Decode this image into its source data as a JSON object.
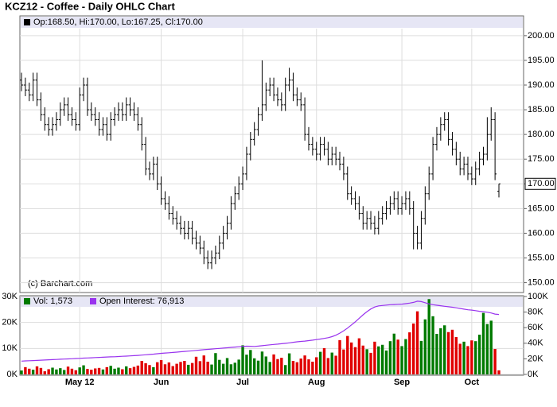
{
  "chart_data": {
    "type": "ohlc",
    "title": "KCZ12 - Coffee - Daily OHLC Chart",
    "info": "Op:168.50, Hi:170.00, Lo:167.25, Cl:170.00",
    "copyright": "(c) Barchart.com",
    "last_close_label": "170.00",
    "categories": [
      null,
      null,
      null,
      null,
      null,
      null,
      null,
      null,
      null,
      null,
      null,
      null,
      null,
      null,
      null,
      "May 12",
      null,
      null,
      null,
      null,
      null,
      null,
      null,
      null,
      null,
      null,
      null,
      null,
      null,
      null,
      null,
      null,
      null,
      null,
      null,
      null,
      "Jun",
      null,
      null,
      null,
      null,
      null,
      null,
      null,
      null,
      null,
      null,
      null,
      null,
      null,
      null,
      null,
      null,
      null,
      null,
      null,
      null,
      "Jul",
      null,
      null,
      null,
      null,
      null,
      null,
      null,
      null,
      null,
      null,
      null,
      null,
      null,
      null,
      null,
      null,
      null,
      null,
      "Aug",
      null,
      null,
      null,
      null,
      null,
      null,
      null,
      null,
      null,
      null,
      null,
      null,
      null,
      null,
      null,
      null,
      null,
      null,
      null,
      null,
      null,
      "Sep",
      null,
      null,
      null,
      null,
      null,
      null,
      null,
      null,
      null,
      null,
      null,
      null,
      null,
      null,
      null,
      null,
      null,
      "Oct",
      null,
      null,
      null,
      null,
      null,
      null
    ],
    "ohlc": [
      [
        191,
        192.5,
        188.75,
        190
      ],
      [
        190,
        191.5,
        187.75,
        189
      ],
      [
        189,
        190.5,
        186.75,
        188
      ],
      [
        188,
        192.5,
        186.75,
        191
      ],
      [
        191,
        192.5,
        185.75,
        187
      ],
      [
        187,
        188.5,
        182.75,
        184
      ],
      [
        184,
        185.5,
        180.75,
        182
      ],
      [
        182,
        183.5,
        179.75,
        181
      ],
      [
        181,
        183.5,
        179.75,
        182
      ],
      [
        182,
        184.5,
        180.75,
        183
      ],
      [
        183,
        186.5,
        181.75,
        185
      ],
      [
        185,
        187.5,
        183.75,
        186
      ],
      [
        186,
        187.5,
        182.75,
        184
      ],
      [
        184,
        185.5,
        181.75,
        183
      ],
      [
        183,
        184.5,
        180.75,
        182
      ],
      [
        182,
        189.5,
        180.75,
        188
      ],
      [
        188,
        191.5,
        186.75,
        190
      ],
      [
        190,
        191.5,
        183.75,
        185
      ],
      [
        185,
        186.5,
        182.75,
        184
      ],
      [
        184,
        185.5,
        181.75,
        183
      ],
      [
        183,
        184.5,
        179.75,
        181
      ],
      [
        181,
        183.5,
        179.75,
        182
      ],
      [
        182,
        183.5,
        178.75,
        180
      ],
      [
        180,
        184.5,
        178.75,
        183
      ],
      [
        183,
        185.5,
        181.75,
        184
      ],
      [
        184,
        186.5,
        182.75,
        185
      ],
      [
        185,
        186.5,
        182.75,
        184
      ],
      [
        184,
        187.5,
        182.75,
        186
      ],
      [
        186,
        187.5,
        183.75,
        185
      ],
      [
        185,
        186.5,
        182.75,
        184
      ],
      [
        184,
        185.5,
        180.75,
        182
      ],
      [
        182,
        183.5,
        176.75,
        178
      ],
      [
        178,
        179.5,
        171.75,
        173
      ],
      [
        173,
        174.5,
        170.75,
        172
      ],
      [
        172,
        175.5,
        170.75,
        174
      ],
      [
        174,
        175.5,
        168.75,
        170
      ],
      [
        170,
        171.5,
        165.75,
        167
      ],
      [
        167,
        168.5,
        164.75,
        166
      ],
      [
        166,
        167.5,
        162.75,
        164
      ],
      [
        164,
        165.5,
        161.75,
        163
      ],
      [
        163,
        164.5,
        160.75,
        162
      ],
      [
        162,
        163.5,
        159.75,
        161
      ],
      [
        161,
        162.5,
        158.75,
        160
      ],
      [
        160,
        162.5,
        158.75,
        161
      ],
      [
        161,
        162.5,
        157.75,
        159
      ],
      [
        159,
        160.5,
        156.75,
        158
      ],
      [
        158,
        159.5,
        155.75,
        157
      ],
      [
        157,
        158.5,
        153.75,
        155
      ],
      [
        155,
        156.5,
        152.75,
        154
      ],
      [
        154,
        156.5,
        152.75,
        155
      ],
      [
        155,
        157.5,
        153.75,
        156
      ],
      [
        156,
        159.5,
        154.75,
        158
      ],
      [
        158,
        161.5,
        156.75,
        160
      ],
      [
        160,
        163.5,
        158.75,
        162
      ],
      [
        162,
        167.5,
        160.75,
        166
      ],
      [
        166,
        169.5,
        164.75,
        168
      ],
      [
        168,
        171.5,
        166.75,
        170
      ],
      [
        170,
        173.5,
        168.75,
        172
      ],
      [
        172,
        177.5,
        170.75,
        176
      ],
      [
        176,
        180.5,
        174.75,
        179
      ],
      [
        179,
        182.5,
        177.75,
        181
      ],
      [
        181,
        185.5,
        179.75,
        184
      ],
      [
        184,
        195,
        182.75,
        186
      ],
      [
        186,
        190.5,
        184.75,
        189
      ],
      [
        189,
        191.5,
        187.75,
        190
      ],
      [
        190,
        191.5,
        186.75,
        188
      ],
      [
        188,
        189.5,
        185.75,
        187
      ],
      [
        187,
        188.5,
        184.75,
        186
      ],
      [
        186,
        191.5,
        184.75,
        190
      ],
      [
        190,
        193.5,
        188.75,
        191
      ],
      [
        191,
        192.5,
        186.75,
        188
      ],
      [
        188,
        189.5,
        185.75,
        187
      ],
      [
        187,
        188.5,
        184.75,
        186
      ],
      [
        186,
        187.5,
        178.75,
        180
      ],
      [
        180,
        181.5,
        176.75,
        178
      ],
      [
        178,
        179.5,
        175.75,
        177
      ],
      [
        177,
        178.5,
        174.75,
        176
      ],
      [
        176,
        179.5,
        174.75,
        178
      ],
      [
        178,
        179.5,
        175.75,
        177
      ],
      [
        177,
        178.5,
        173.75,
        175
      ],
      [
        175,
        177.5,
        173.75,
        176
      ],
      [
        176,
        177.5,
        173.75,
        175
      ],
      [
        175,
        176.5,
        172.75,
        174
      ],
      [
        174,
        175.5,
        170.75,
        172
      ],
      [
        172,
        173.5,
        166.75,
        168
      ],
      [
        168,
        169.5,
        165.75,
        167
      ],
      [
        167,
        168.5,
        164.75,
        166
      ],
      [
        166,
        167.5,
        162.75,
        164
      ],
      [
        164,
        165.5,
        160.75,
        162
      ],
      [
        162,
        164.5,
        160.75,
        163
      ],
      [
        163,
        164.5,
        160.75,
        162
      ],
      [
        162,
        163.5,
        159.75,
        161
      ],
      [
        161,
        164.5,
        159.75,
        163
      ],
      [
        163,
        165.5,
        161.75,
        164
      ],
      [
        164,
        166.5,
        162.75,
        165
      ],
      [
        165,
        167.5,
        163.75,
        166
      ],
      [
        166,
        168.5,
        164.75,
        167
      ],
      [
        167,
        168.5,
        163.75,
        165
      ],
      [
        165,
        167.5,
        163.75,
        166
      ],
      [
        166,
        168.5,
        164.75,
        167
      ],
      [
        167,
        168.5,
        163.75,
        165
      ],
      [
        165,
        166.5,
        156.75,
        160
      ],
      [
        160,
        161.5,
        156.75,
        158
      ],
      [
        158,
        164.5,
        156.75,
        163
      ],
      [
        163,
        169.5,
        161.75,
        168
      ],
      [
        168,
        173.5,
        166.75,
        172
      ],
      [
        172,
        179.5,
        170.75,
        178
      ],
      [
        178,
        181.5,
        176.75,
        180
      ],
      [
        180,
        183.5,
        178.75,
        182
      ],
      [
        182,
        184.5,
        180.75,
        183
      ],
      [
        183,
        184.5,
        177.75,
        179
      ],
      [
        179,
        180.5,
        175.75,
        177
      ],
      [
        177,
        178.5,
        173.75,
        175
      ],
      [
        175,
        176.5,
        171.75,
        173
      ],
      [
        173,
        175.5,
        171.75,
        174
      ],
      [
        174,
        175.5,
        170.75,
        172
      ],
      [
        172,
        173.5,
        169.75,
        171
      ],
      [
        171,
        174.5,
        169.75,
        173
      ],
      [
        173,
        176.5,
        171.75,
        175
      ],
      [
        175,
        177.5,
        173.75,
        176
      ],
      [
        176,
        183.5,
        174.75,
        180
      ],
      [
        180,
        185.5,
        178.75,
        183
      ],
      [
        183,
        184.5,
        170.75,
        172
      ],
      [
        168.5,
        170,
        167.25,
        170
      ]
    ],
    "ylim": [
      148,
      204
    ],
    "yticks": [
      {
        "value": 150,
        "label": "150.00"
      },
      {
        "value": 155,
        "label": "155.00"
      },
      {
        "value": 160,
        "label": "160.00"
      },
      {
        "value": 165,
        "label": "165.00"
      },
      {
        "value": 170,
        "label": "170.00"
      },
      {
        "value": 175,
        "label": "175.00"
      },
      {
        "value": 180,
        "label": "180.00"
      },
      {
        "value": 185,
        "label": "185.00"
      },
      {
        "value": 190,
        "label": "190.00"
      },
      {
        "value": 195,
        "label": "195.00"
      },
      {
        "value": 200,
        "label": "200.00"
      }
    ],
    "bar_color": "#000000",
    "grid": true,
    "volume": {
      "name": "Vol: 1,573",
      "up_color": "#007a00",
      "down_color": "#e00000",
      "values": [
        1500,
        2800,
        2200,
        1800,
        3100,
        2500,
        1200,
        2000,
        2600,
        1900,
        2400,
        1700,
        3000,
        2200,
        1600,
        2700,
        3500,
        2100,
        1800,
        2300,
        2500,
        1900,
        2800,
        3300,
        2200,
        2600,
        2000,
        3100,
        2400,
        2900,
        3400,
        5200,
        4300,
        3600,
        2800,
        4700,
        5500,
        3900,
        4600,
        3200,
        4100,
        4800,
        5200,
        3700,
        4400,
        6800,
        5100,
        7300,
        4900,
        3800,
        8200,
        5600,
        4100,
        6300,
        3900,
        4500,
        5700,
        11200,
        7600,
        9400,
        6200,
        5300,
        8800,
        6900,
        4800,
        7700,
        5900,
        6400,
        3600,
        8100,
        5200,
        4700,
        6100,
        7300,
        5800,
        4900,
        6600,
        8700,
        10100,
        6300,
        8400,
        7200,
        13200,
        9600,
        14800,
        12300,
        10500,
        13900,
        11100,
        9700,
        8300,
        12600,
        10800,
        11400,
        9200,
        12800,
        15700,
        13400,
        10900,
        13600,
        16200,
        19600,
        24300,
        12900,
        21200,
        29000,
        22400,
        15600,
        17800,
        18900,
        16300,
        17200,
        14400,
        11800,
        12600,
        10900,
        13100,
        12800,
        15300,
        23700,
        19400,
        20700,
        9800,
        1573
      ],
      "ylim": [
        0,
        30000
      ],
      "yticks": [
        {
          "value": 0,
          "label": "0K"
        },
        {
          "value": 10000,
          "label": "10K"
        },
        {
          "value": 20000,
          "label": "20K"
        },
        {
          "value": 30000,
          "label": "30K"
        }
      ]
    },
    "open_interest": {
      "name": "Open Interest: 76,913",
      "color": "#9933ee",
      "axis": "y2",
      "values": [
        17000,
        17300,
        17600,
        17800,
        18000,
        18300,
        18500,
        18800,
        19000,
        19200,
        19500,
        19700,
        19900,
        20100,
        20400,
        20600,
        20900,
        21100,
        21300,
        21600,
        21800,
        22000,
        22300,
        22500,
        22700,
        23000,
        23300,
        23500,
        23800,
        24100,
        24400,
        24800,
        25200,
        25600,
        26000,
        26500,
        27000,
        27400,
        27800,
        28200,
        28600,
        29100,
        29500,
        29900,
        30300,
        30800,
        31200,
        31700,
        32100,
        32500,
        33000,
        33400,
        33800,
        34200,
        34700,
        35100,
        35500,
        35800,
        36200,
        36100,
        35900,
        36300,
        36800,
        37400,
        38000,
        38500,
        38900,
        39400,
        39900,
        40500,
        41200,
        41800,
        42300,
        42800,
        43400,
        44000,
        44700,
        45400,
        46200,
        47100,
        48500,
        50300,
        53000,
        56000,
        59500,
        63500,
        67500,
        72000,
        76500,
        80500,
        84000,
        86500,
        88000,
        88500,
        89000,
        89500,
        89700,
        90000,
        90200,
        90800,
        91500,
        92500,
        94000,
        93500,
        92000,
        90500,
        89500,
        88800,
        88200,
        87500,
        86800,
        86200,
        85500,
        84700,
        83800,
        83000,
        82500,
        81800,
        81000,
        80500,
        79800,
        78900,
        77500,
        76913
      ],
      "y2lim": [
        0,
        100000
      ],
      "y2ticks": [
        {
          "value": 0,
          "label": "0K"
        },
        {
          "value": 20000,
          "label": "20K"
        },
        {
          "value": 40000,
          "label": "40K"
        },
        {
          "value": 60000,
          "label": "60K"
        },
        {
          "value": 80000,
          "label": "80K"
        },
        {
          "value": 100000,
          "label": "100K"
        }
      ]
    }
  }
}
